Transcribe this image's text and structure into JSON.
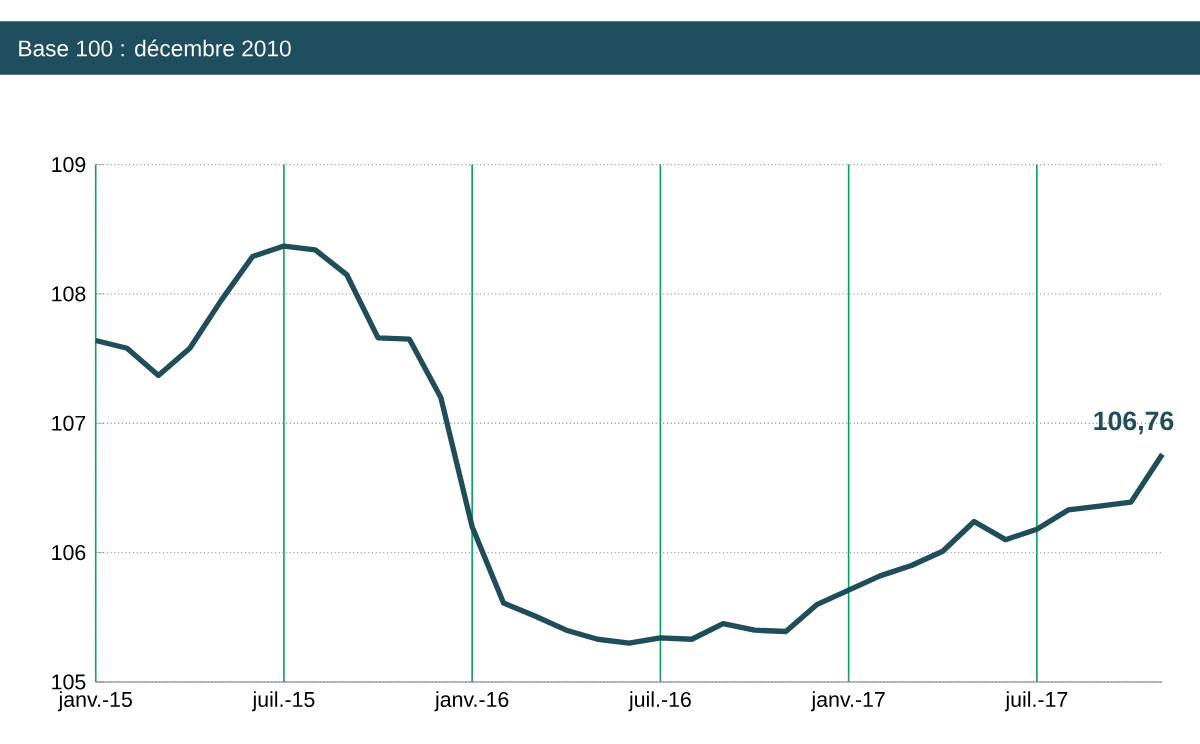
{
  "chart_data": {
    "type": "line",
    "title": "Base 100 : décembre 2010",
    "x": [
      "2015-01",
      "2015-02",
      "2015-03",
      "2015-04",
      "2015-05",
      "2015-06",
      "2015-07",
      "2015-08",
      "2015-09",
      "2015-10",
      "2015-11",
      "2015-12",
      "2016-01",
      "2016-02",
      "2016-03",
      "2016-04",
      "2016-05",
      "2016-06",
      "2016-07",
      "2016-08",
      "2016-09",
      "2016-10",
      "2016-11",
      "2016-12",
      "2017-01",
      "2017-02",
      "2017-03",
      "2017-04",
      "2017-05",
      "2017-06",
      "2017-07",
      "2017-08",
      "2017-09",
      "2017-10",
      "2017-11"
    ],
    "series": [
      {
        "color": "#1f4e5a",
        "values": [
          107.64,
          107.58,
          107.37,
          107.58,
          107.95,
          108.29,
          108.37,
          108.34,
          108.15,
          107.66,
          107.65,
          107.2,
          106.2,
          105.61,
          105.51,
          105.4,
          105.33,
          105.3,
          105.34,
          105.33,
          105.45,
          105.4,
          105.39,
          105.6,
          105.71,
          105.82,
          105.9,
          106.01,
          106.24,
          106.1,
          106.18,
          106.33,
          106.36,
          106.39,
          106.76
        ]
      }
    ],
    "xlim": [
      "2015-01",
      "2017-11"
    ],
    "xticks": [
      {
        "value": "2015-01",
        "label": "janv.-15"
      },
      {
        "value": "2015-07",
        "label": "juil.-15"
      },
      {
        "value": "2016-01",
        "label": "janv.-16"
      },
      {
        "value": "2016-07",
        "label": "juil.-16"
      },
      {
        "value": "2017-01",
        "label": "janv.-17"
      },
      {
        "value": "2017-07",
        "label": "juil.-17"
      }
    ],
    "ylim": [
      105,
      109
    ],
    "yticks": [
      105,
      106,
      107,
      108,
      109
    ],
    "grid": true,
    "marker": "none",
    "line_style": "solid",
    "annotations": [
      {
        "text": "106,76",
        "x": "2017-11",
        "y": 106.76
      }
    ]
  }
}
